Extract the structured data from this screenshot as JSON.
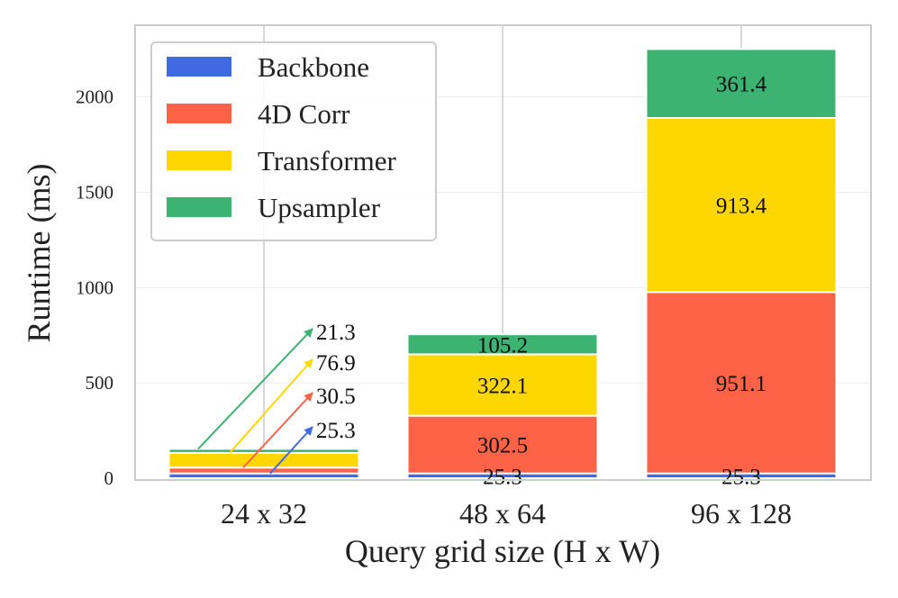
{
  "chart_data": {
    "type": "bar",
    "stacked": true,
    "categories": [
      "24 x 32",
      "48 x 64",
      "96 x 128"
    ],
    "series": [
      {
        "name": "Backbone",
        "color": "#4169e1",
        "values": [
          25.3,
          25.3,
          25.3
        ],
        "labels": [
          "25.3",
          "25.3",
          "25.3"
        ]
      },
      {
        "name": "4D Corr",
        "color": "#ff6347",
        "values": [
          30.5,
          302.5,
          951.1
        ],
        "labels": [
          "30.5",
          "302.5",
          "951.1"
        ]
      },
      {
        "name": "Transformer",
        "color": "#ffd700",
        "values": [
          76.9,
          322.1,
          913.4
        ],
        "labels": [
          "76.9",
          "322.1",
          "913.4"
        ]
      },
      {
        "name": "Upsampler",
        "color": "#3cb371",
        "values": [
          21.3,
          105.2,
          361.4
        ],
        "labels": [
          "21.3",
          "105.2",
          "361.4"
        ]
      }
    ],
    "xlabel": "Query grid size (H x W)",
    "ylabel": "Runtime (ms)",
    "ylim": [
      0,
      2350
    ],
    "yticks": [
      0,
      500,
      1000,
      1500,
      2000
    ],
    "ytick_labels": [
      "0",
      "500",
      "1000",
      "1500",
      "2000"
    ],
    "grid": true,
    "legend_position": "top-left",
    "callout_category": "24 x 32"
  }
}
